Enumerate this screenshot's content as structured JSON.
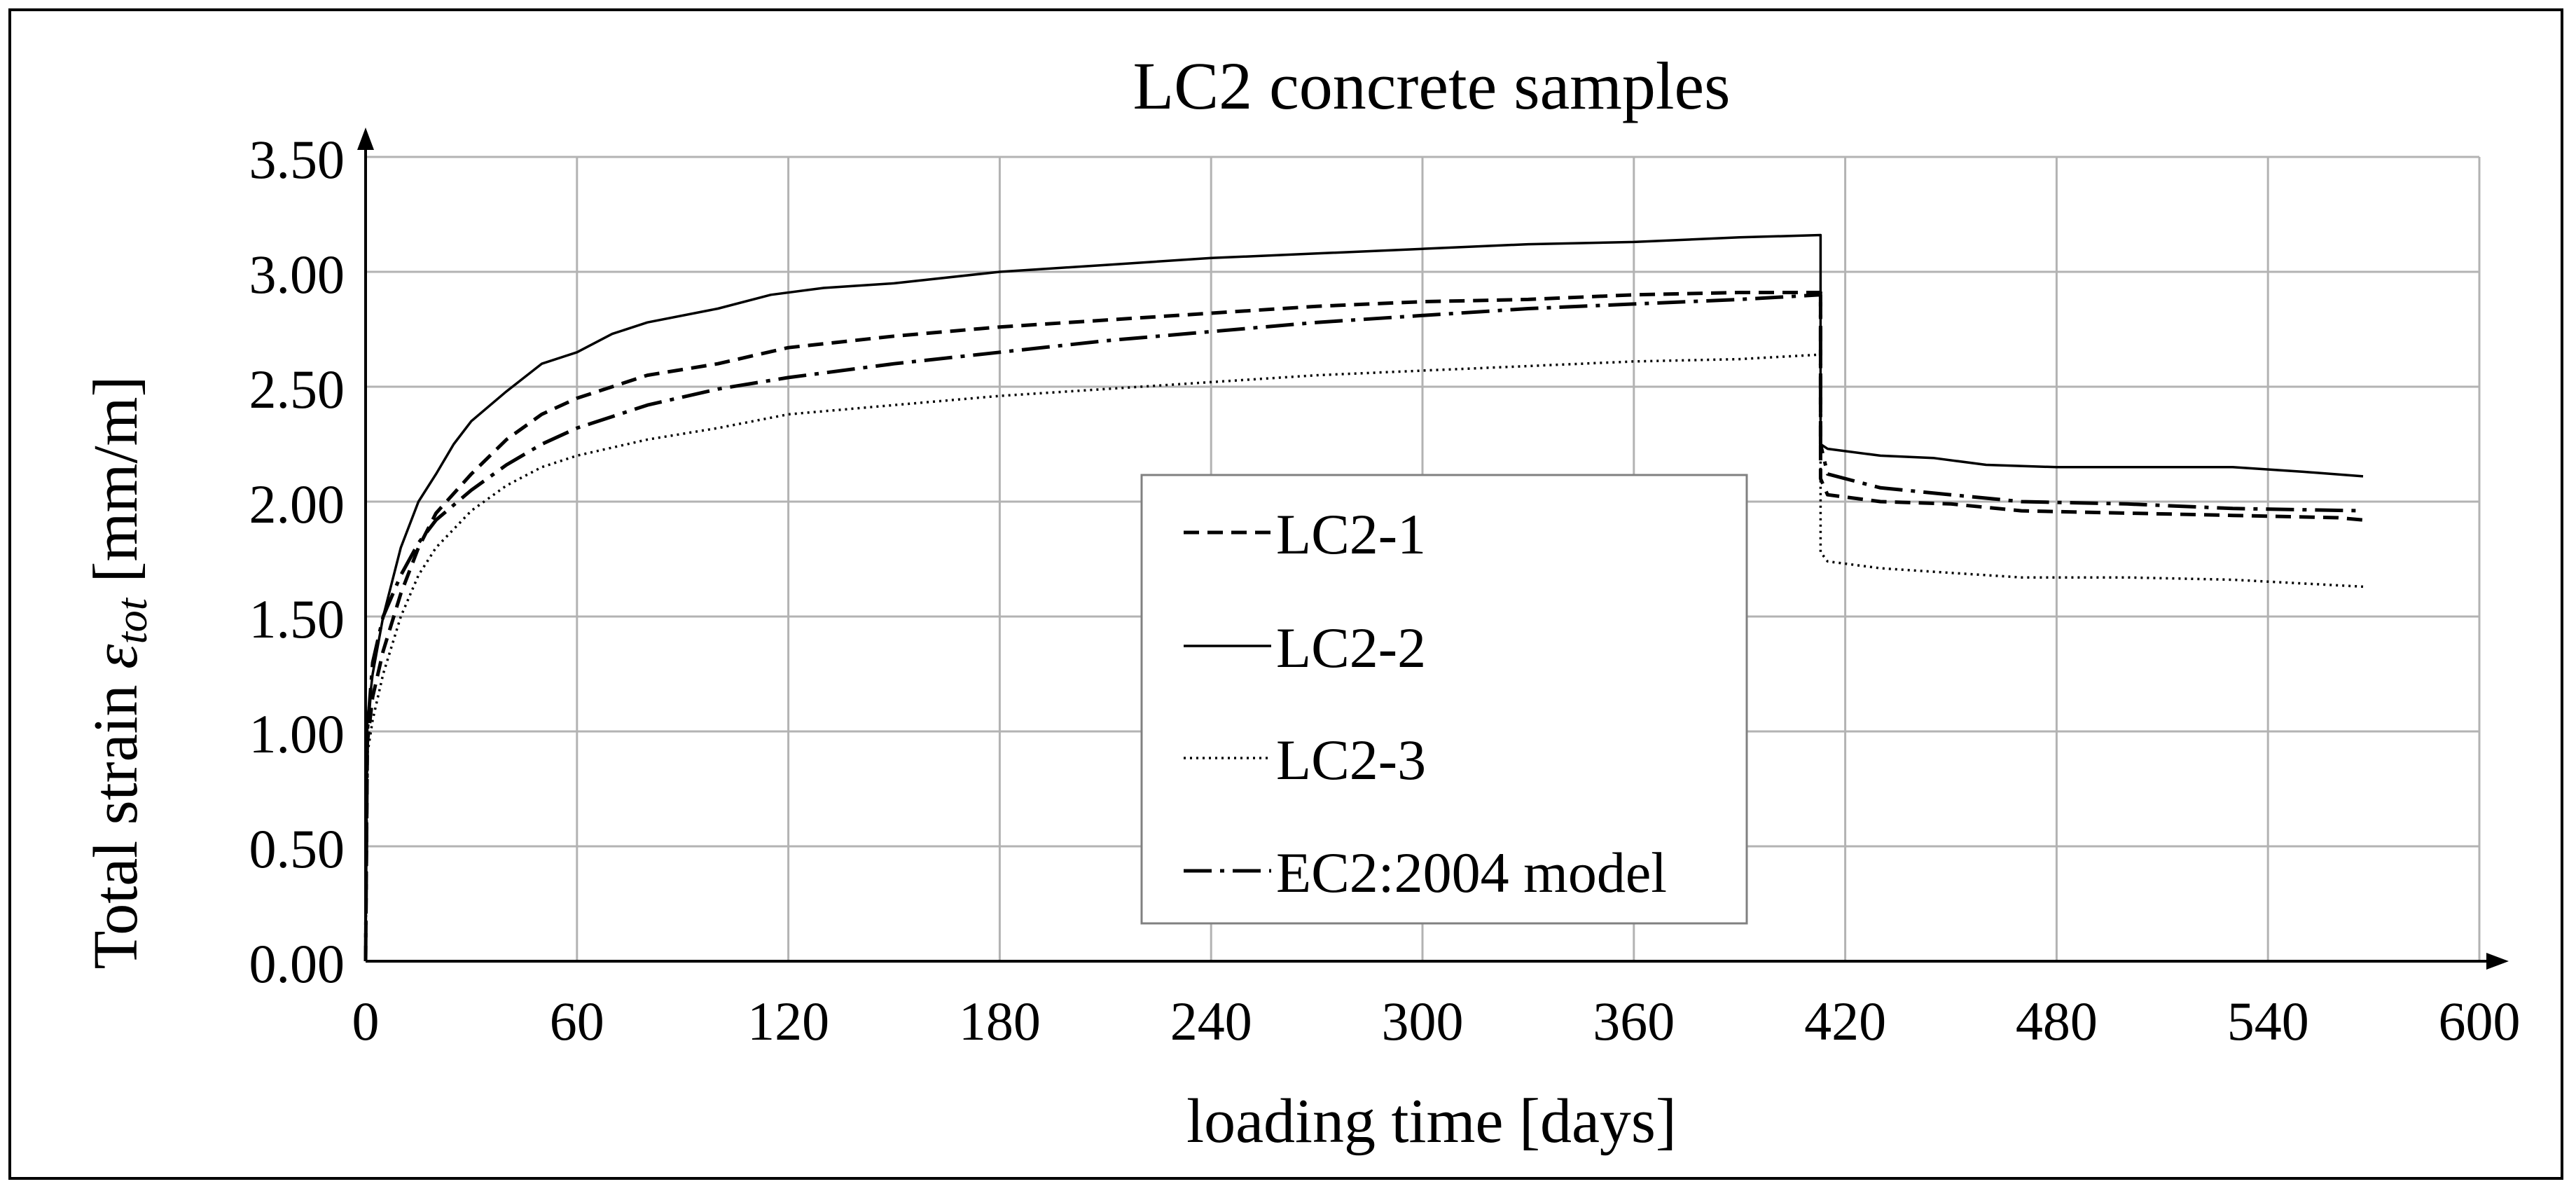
{
  "chart_data": {
    "type": "line",
    "title": "LC2 concrete samples",
    "xlabel": "loading time [days]",
    "ylabel": {
      "main": "Total strain ",
      "symbol": "ε",
      "subscript": "tot",
      "unit": " [mm/m]"
    },
    "xlim": [
      0,
      600
    ],
    "ylim": [
      0,
      3.5
    ],
    "xticks": [
      "0",
      "60",
      "120",
      "180",
      "240",
      "300",
      "360",
      "420",
      "480",
      "540",
      "600"
    ],
    "yticks": [
      "0.00",
      "0.50",
      "1.00",
      "1.50",
      "2.00",
      "2.50",
      "3.00",
      "3.50"
    ],
    "grid": true,
    "legend_position": "center-right",
    "series": [
      {
        "name": "LC2-1",
        "style": "dashed",
        "x": [
          0,
          0.5,
          2,
          5,
          10,
          15,
          20,
          30,
          40,
          50,
          60,
          70,
          80,
          100,
          120,
          150,
          180,
          210,
          240,
          270,
          300,
          330,
          360,
          390,
          413,
          413,
          415,
          430,
          450,
          470,
          500,
          530,
          560,
          567
        ],
        "y": [
          0,
          0.95,
          1.15,
          1.35,
          1.6,
          1.8,
          1.95,
          2.12,
          2.27,
          2.38,
          2.45,
          2.5,
          2.55,
          2.6,
          2.67,
          2.72,
          2.76,
          2.79,
          2.82,
          2.85,
          2.87,
          2.88,
          2.9,
          2.91,
          2.91,
          2.1,
          2.03,
          2.0,
          1.99,
          1.96,
          1.95,
          1.94,
          1.93,
          1.92
        ]
      },
      {
        "name": "LC2-2",
        "style": "solid",
        "x": [
          0,
          0.5,
          2,
          5,
          10,
          15,
          20,
          25,
          30,
          40,
          50,
          60,
          70,
          80,
          100,
          115,
          130,
          150,
          180,
          210,
          240,
          270,
          300,
          330,
          360,
          390,
          413,
          413,
          415,
          430,
          445,
          460,
          480,
          500,
          530,
          550,
          567
        ],
        "y": [
          0,
          1.05,
          1.25,
          1.5,
          1.8,
          2.0,
          2.12,
          2.25,
          2.35,
          2.48,
          2.6,
          2.65,
          2.73,
          2.78,
          2.84,
          2.9,
          2.93,
          2.95,
          3.0,
          3.03,
          3.06,
          3.08,
          3.1,
          3.12,
          3.13,
          3.15,
          3.16,
          2.25,
          2.23,
          2.2,
          2.19,
          2.16,
          2.15,
          2.15,
          2.15,
          2.13,
          2.11
        ]
      },
      {
        "name": "LC2-3",
        "style": "dotted",
        "x": [
          0,
          0.5,
          2,
          5,
          10,
          15,
          20,
          30,
          40,
          50,
          60,
          80,
          100,
          120,
          150,
          180,
          210,
          240,
          270,
          300,
          330,
          360,
          390,
          413,
          413,
          415,
          430,
          450,
          470,
          500,
          530,
          567
        ],
        "y": [
          0,
          0.9,
          1.05,
          1.25,
          1.5,
          1.68,
          1.8,
          1.96,
          2.07,
          2.15,
          2.2,
          2.27,
          2.32,
          2.38,
          2.42,
          2.46,
          2.49,
          2.52,
          2.55,
          2.57,
          2.59,
          2.61,
          2.62,
          2.64,
          1.78,
          1.74,
          1.71,
          1.69,
          1.67,
          1.67,
          1.66,
          1.63
        ]
      },
      {
        "name": "EC2:2004 model",
        "style": "dash-dot",
        "x": [
          0,
          0.5,
          2,
          5,
          10,
          15,
          20,
          30,
          40,
          50,
          60,
          80,
          100,
          120,
          150,
          180,
          210,
          240,
          270,
          300,
          330,
          360,
          390,
          413,
          413,
          415,
          430,
          450,
          470,
          500,
          530,
          567
        ],
        "y": [
          0,
          1.0,
          1.3,
          1.5,
          1.68,
          1.82,
          1.92,
          2.05,
          2.16,
          2.25,
          2.32,
          2.42,
          2.49,
          2.54,
          2.6,
          2.65,
          2.7,
          2.74,
          2.78,
          2.81,
          2.84,
          2.86,
          2.88,
          2.9,
          2.25,
          2.12,
          2.06,
          2.03,
          2.0,
          1.99,
          1.97,
          1.96
        ]
      }
    ]
  }
}
